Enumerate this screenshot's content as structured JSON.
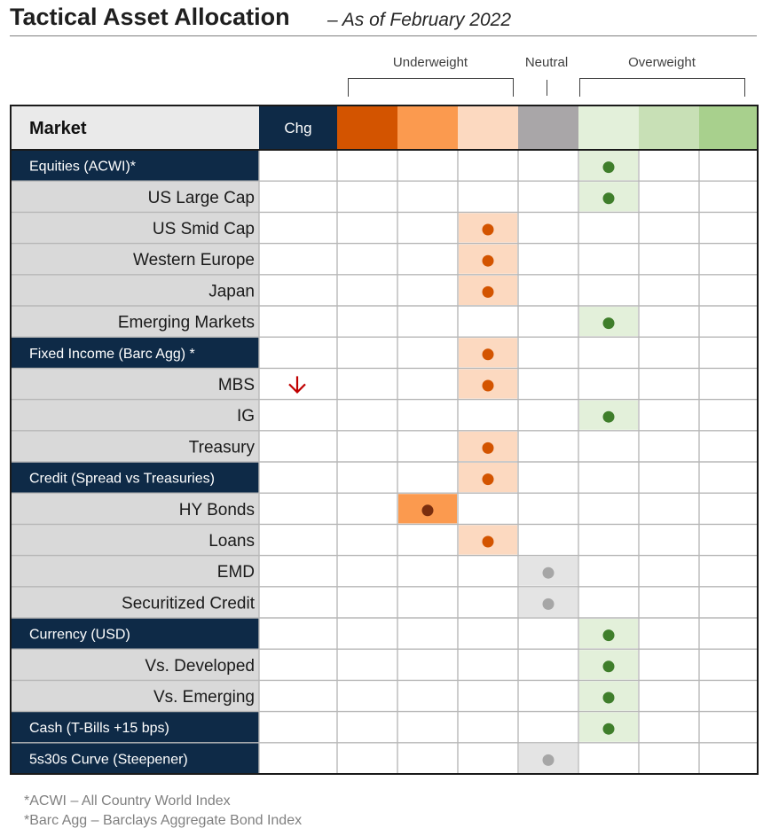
{
  "title": "Tactical Asset Allocation",
  "subtitle": "– As of February 2022",
  "scale": {
    "underweight": "Underweight",
    "neutral": "Neutral",
    "overweight": "Overweight"
  },
  "colors": {
    "navy": "#0e2a47",
    "uw3": "#d35400",
    "uw2": "#fb9a4f",
    "uw1": "#fcd9c0",
    "neutral": "#a9a6a8",
    "ow1": "#e3f0da",
    "ow2": "#c8e0b6",
    "ow3": "#a8d08d",
    "dot_uw1": "#d35400",
    "dot_uw2": "#7a2e0e",
    "dot_neutral": "#a6a6a6",
    "dot_ow": "#3f7e2b",
    "arrow": "#c00000"
  },
  "chart_data": {
    "type": "table",
    "columns": [
      "Market",
      "Chg"
    ],
    "scale_positions": [
      -3,
      -2,
      -1,
      0,
      1,
      2,
      3
    ],
    "rows": [
      {
        "label": "Equities  (ACWI)*",
        "category": true,
        "position": 1,
        "change": ""
      },
      {
        "label": "US Large Cap",
        "category": false,
        "position": 1,
        "change": ""
      },
      {
        "label": "US Smid Cap",
        "category": false,
        "position": -1,
        "change": ""
      },
      {
        "label": "Western Europe",
        "category": false,
        "position": -1,
        "change": ""
      },
      {
        "label": "Japan",
        "category": false,
        "position": -1,
        "change": ""
      },
      {
        "label": "Emerging Markets",
        "category": false,
        "position": 1,
        "change": ""
      },
      {
        "label": "Fixed Income (Barc Agg) *",
        "category": true,
        "position": -1,
        "change": ""
      },
      {
        "label": "MBS",
        "category": false,
        "position": -1,
        "change": "down"
      },
      {
        "label": "IG",
        "category": false,
        "position": 1,
        "change": ""
      },
      {
        "label": "Treasury",
        "category": false,
        "position": -1,
        "change": ""
      },
      {
        "label": "Credit (Spread vs Treasuries)",
        "category": true,
        "position": -1,
        "change": ""
      },
      {
        "label": "HY Bonds",
        "category": false,
        "position": -2,
        "change": ""
      },
      {
        "label": "Loans",
        "category": false,
        "position": -1,
        "change": ""
      },
      {
        "label": "EMD",
        "category": false,
        "position": 0,
        "change": ""
      },
      {
        "label": "Securitized Credit",
        "category": false,
        "position": 0,
        "change": ""
      },
      {
        "label": "Currency (USD)",
        "category": true,
        "position": 1,
        "change": ""
      },
      {
        "label": "Vs. Developed",
        "category": false,
        "position": 1,
        "change": ""
      },
      {
        "label": "Vs. Emerging",
        "category": false,
        "position": 1,
        "change": ""
      },
      {
        "label": "Cash (T-Bills +15 bps)",
        "category": true,
        "position": 1,
        "change": ""
      },
      {
        "label": "5s30s Curve (Steepener)",
        "category": true,
        "position": 0,
        "change": ""
      }
    ]
  },
  "footnotes": [
    "*ACWI – All Country World Index",
    "*Barc Agg – Barclays Aggregate Bond Index"
  ]
}
